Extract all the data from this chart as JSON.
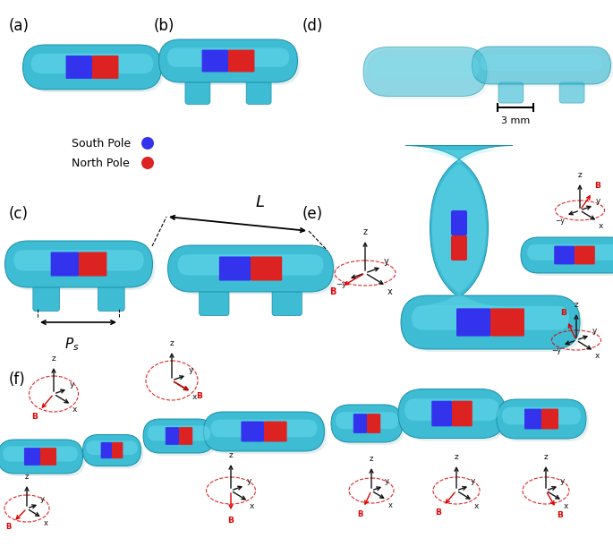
{
  "figure_width": 6.85,
  "figure_height": 6.11,
  "dpi": 100,
  "background_color": "#ffffff",
  "panel_labels": [
    "(a)",
    "(b)",
    "(c)",
    "(d)",
    "(e)",
    "(f)"
  ],
  "robot_color": "#3dbcd4",
  "robot_color_light": "#7de8f8",
  "robot_color_dark": "#1a8fa8",
  "robot_shadow": "#b0e8f0",
  "magnet_blue": "#3333ee",
  "magnet_red": "#dd2222",
  "axis_color": "#111111",
  "B_color": "#dd0000",
  "legend_fontsize": 9,
  "panel_label_fontsize": 12,
  "axis_fontsize": 7,
  "scalebar_text": "3 mm"
}
